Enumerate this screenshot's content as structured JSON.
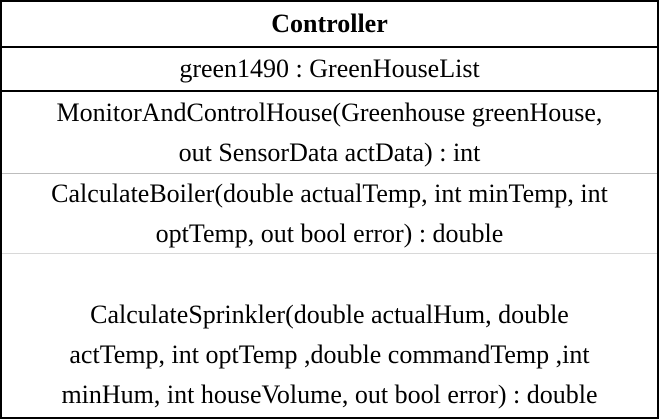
{
  "class_box": {
    "name": "Controller",
    "attributes": [
      "green1490 : GreenHouseList"
    ],
    "methods": [
      {
        "lines": [
          "MonitorAndControlHouse(Greenhouse greenHouse,",
          "out SensorData actData) : int"
        ]
      },
      {
        "lines": [
          "CalculateBoiler(double actualTemp, int minTemp, int",
          "optTemp, out bool error) : double"
        ]
      },
      {
        "lines": [
          "CalculateSprinkler(double actualHum, double",
          "actTemp, int optTemp ,double commandTemp ,int",
          "minHum, int houseVolume, out bool error) : double"
        ]
      }
    ]
  }
}
